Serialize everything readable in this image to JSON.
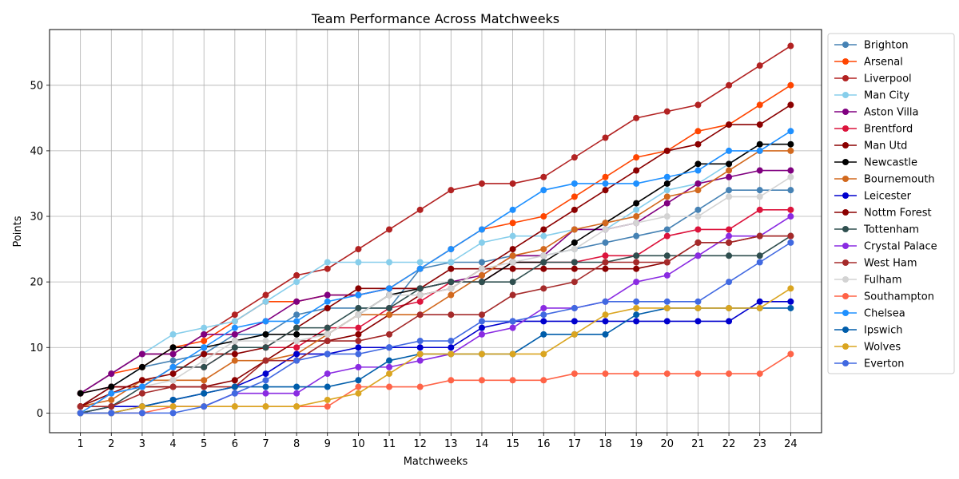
{
  "chart_data": {
    "type": "line",
    "title": "Team Performance Across Matchweeks",
    "xlabel": "Matchweeks",
    "ylabel": "Points",
    "x": [
      1,
      2,
      3,
      4,
      5,
      6,
      7,
      8,
      9,
      10,
      11,
      12,
      13,
      14,
      15,
      16,
      17,
      18,
      19,
      20,
      21,
      22,
      23,
      24
    ],
    "xlim": [
      0,
      25
    ],
    "ylim": [
      -3,
      58.5
    ],
    "yticks": [
      0,
      10,
      20,
      30,
      40,
      50
    ],
    "grid": true,
    "legend": "outside-right",
    "series": [
      {
        "name": "Brighton",
        "color": "#4682b4",
        "values": [
          1,
          4,
          7,
          8,
          9,
          12,
          12,
          15,
          16,
          16,
          16,
          22,
          23,
          23,
          24,
          24,
          25,
          26,
          27,
          28,
          31,
          34,
          34,
          34
        ]
      },
      {
        "name": "Arsenal",
        "color": "#ff4500",
        "values": [
          3,
          6,
          7,
          10,
          11,
          14,
          17,
          17,
          18,
          18,
          19,
          22,
          25,
          28,
          29,
          30,
          33,
          36,
          39,
          40,
          43,
          44,
          47,
          50
        ]
      },
      {
        "name": "Liverpool",
        "color": "#b22222",
        "values": [
          3,
          6,
          9,
          9,
          12,
          15,
          18,
          21,
          22,
          25,
          28,
          31,
          34,
          35,
          35,
          36,
          39,
          42,
          45,
          46,
          47,
          50,
          53,
          56
        ]
      },
      {
        "name": "Man City",
        "color": "#87ceeb",
        "values": [
          3,
          6,
          9,
          12,
          13,
          14,
          17,
          20,
          23,
          23,
          23,
          23,
          23,
          26,
          27,
          27,
          28,
          28,
          31,
          34,
          35,
          38,
          41,
          41
        ]
      },
      {
        "name": "Aston Villa",
        "color": "#800080",
        "values": [
          3,
          6,
          9,
          9,
          12,
          12,
          14,
          17,
          18,
          18,
          19,
          19,
          20,
          21,
          24,
          24,
          28,
          28,
          29,
          32,
          35,
          36,
          37,
          37
        ]
      },
      {
        "name": "Brentford",
        "color": "#dc143c",
        "values": [
          3,
          4,
          4,
          7,
          7,
          10,
          10,
          10,
          13,
          13,
          16,
          17,
          20,
          20,
          23,
          23,
          23,
          24,
          24,
          27,
          28,
          28,
          31,
          31
        ]
      },
      {
        "name": "Man Utd",
        "color": "#8b0000",
        "values": [
          1,
          4,
          4,
          4,
          4,
          5,
          8,
          11,
          11,
          12,
          15,
          18,
          19,
          22,
          22,
          22,
          22,
          22,
          22,
          23,
          26,
          26,
          27,
          27
        ]
      },
      {
        "name": "Newcastle",
        "color": "#000000",
        "values": [
          3,
          4,
          7,
          10,
          10,
          11,
          12,
          12,
          12,
          15,
          18,
          19,
          20,
          20,
          23,
          23,
          26,
          29,
          32,
          35,
          38,
          38,
          41,
          41
        ]
      },
      {
        "name": "Bournemouth",
        "color": "#d2691e",
        "values": [
          1,
          2,
          5,
          5,
          5,
          8,
          8,
          9,
          12,
          15,
          15,
          15,
          18,
          21,
          24,
          25,
          28,
          29,
          30,
          33,
          34,
          37,
          40,
          40
        ]
      },
      {
        "name": "Leicester",
        "color": "#0000cd",
        "values": [
          0,
          1,
          1,
          2,
          3,
          4,
          6,
          9,
          9,
          10,
          10,
          10,
          10,
          13,
          14,
          14,
          14,
          14,
          14,
          14,
          14,
          14,
          17,
          17
        ]
      },
      {
        "name": "Nottm Forest",
        "color": "#8b0000",
        "values": [
          1,
          3,
          5,
          6,
          9,
          9,
          10,
          13,
          16,
          19,
          19,
          19,
          22,
          22,
          25,
          28,
          31,
          34,
          37,
          40,
          41,
          44,
          44,
          47
        ]
      },
      {
        "name": "Tottenham",
        "color": "#2f4f4f",
        "values": [
          0,
          1,
          4,
          7,
          7,
          10,
          10,
          13,
          13,
          16,
          16,
          19,
          20,
          20,
          20,
          23,
          23,
          23,
          24,
          24,
          24,
          24,
          24,
          27
        ]
      },
      {
        "name": "Crystal Palace",
        "color": "#8a2be2",
        "values": [
          0,
          0,
          1,
          1,
          1,
          3,
          3,
          3,
          6,
          7,
          7,
          8,
          9,
          12,
          13,
          16,
          16,
          17,
          20,
          21,
          24,
          27,
          27,
          30
        ]
      },
      {
        "name": "West Ham",
        "color": "#a52a2a",
        "values": [
          1,
          1,
          3,
          4,
          4,
          4,
          8,
          8,
          11,
          11,
          12,
          15,
          15,
          15,
          18,
          19,
          20,
          23,
          23,
          23,
          26,
          26,
          27,
          27
        ]
      },
      {
        "name": "Fulham",
        "color": "#d3d3d3",
        "values": [
          0,
          3,
          4,
          5,
          8,
          11,
          11,
          11,
          12,
          15,
          18,
          18,
          19,
          22,
          23,
          24,
          25,
          28,
          29,
          30,
          30,
          33,
          33,
          36
        ]
      },
      {
        "name": "Southampton",
        "color": "#ff6347",
        "values": [
          0,
          0,
          0,
          1,
          1,
          1,
          1,
          1,
          1,
          4,
          4,
          4,
          5,
          5,
          5,
          5,
          6,
          6,
          6,
          6,
          6,
          6,
          6,
          9
        ]
      },
      {
        "name": "Chelsea",
        "color": "#1e90ff",
        "values": [
          0,
          3,
          4,
          7,
          10,
          13,
          14,
          14,
          17,
          18,
          19,
          22,
          25,
          28,
          31,
          34,
          35,
          35,
          35,
          36,
          37,
          40,
          40,
          43
        ]
      },
      {
        "name": "Ipswich",
        "color": "#005daa",
        "values": [
          0,
          0,
          1,
          2,
          3,
          4,
          4,
          4,
          4,
          5,
          8,
          9,
          9,
          9,
          9,
          12,
          12,
          12,
          15,
          16,
          16,
          16,
          16,
          16
        ]
      },
      {
        "name": "Wolves",
        "color": "#daa520",
        "values": [
          0,
          0,
          1,
          1,
          1,
          1,
          1,
          1,
          2,
          3,
          6,
          9,
          9,
          9,
          9,
          9,
          12,
          15,
          16,
          16,
          16,
          16,
          16,
          19
        ]
      },
      {
        "name": "Everton",
        "color": "#4169e1",
        "values": [
          0,
          0,
          0,
          0,
          1,
          3,
          5,
          8,
          9,
          9,
          10,
          11,
          11,
          14,
          14,
          15,
          16,
          17,
          17,
          17,
          17,
          20,
          23,
          26
        ]
      }
    ]
  }
}
